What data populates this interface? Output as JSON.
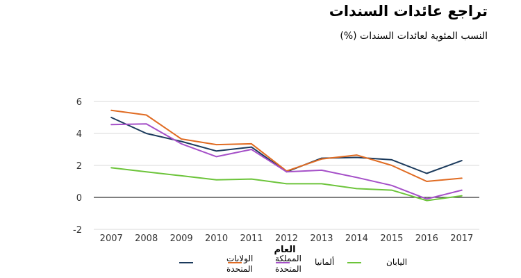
{
  "chart_data": {
    "type": "line",
    "title": "تراجع عائدات السندات",
    "subtitle": "النسب المئوية لعائدات السندات (%)",
    "xlabel": "العام",
    "ylabel": "",
    "x": [
      "2007",
      "2008",
      "2009",
      "2010",
      "2011",
      "2012",
      "2013",
      "2014",
      "2015",
      "2016",
      "2017"
    ],
    "ylim": [
      -2,
      6
    ],
    "yticks": [
      -2,
      0,
      2,
      4,
      6
    ],
    "grid": true,
    "legend_position": "bottom",
    "series": [
      {
        "name": "الولايات المتحدة",
        "color": "#1b3a5c",
        "values": [
          5.0,
          4.0,
          3.5,
          2.9,
          3.15,
          1.6,
          2.45,
          2.5,
          2.35,
          1.5,
          2.3
        ]
      },
      {
        "name": "المملكة المتحدة",
        "color": "#e06b22",
        "values": [
          5.45,
          5.15,
          3.65,
          3.3,
          3.35,
          1.65,
          2.4,
          2.65,
          2.0,
          1.0,
          1.2
        ]
      },
      {
        "name": "ألمانيا",
        "color": "#a550c8",
        "values": [
          4.55,
          4.6,
          3.35,
          2.55,
          3.0,
          1.6,
          1.7,
          1.25,
          0.75,
          -0.1,
          0.45
        ]
      },
      {
        "name": "اليابان",
        "color": "#6cc43a",
        "values": [
          1.85,
          1.6,
          1.35,
          1.1,
          1.15,
          0.85,
          0.85,
          0.55,
          0.45,
          -0.2,
          0.1
        ]
      }
    ]
  }
}
